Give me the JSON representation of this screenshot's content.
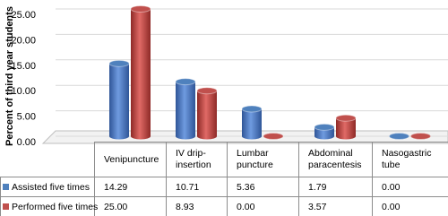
{
  "chart_data": {
    "type": "bar",
    "ylabel": "Percent of third year students",
    "categories": [
      "Venipuncture",
      "IV drip-insertion",
      "Lumbar puncture",
      "Abdominal paracentesis",
      "Nasogastric tube"
    ],
    "series": [
      {
        "name": "Assisted five times",
        "color": "#4f81bd",
        "values": [
          14.29,
          10.71,
          5.36,
          1.79,
          0
        ],
        "value_labels": [
          "14.29",
          "10.71",
          "5.36",
          "1.79",
          "0.00"
        ]
      },
      {
        "name": "Performed five times",
        "color": "#c0504d",
        "values": [
          25,
          8.93,
          0,
          3.57,
          0
        ],
        "value_labels": [
          "25.00",
          "8.93",
          "0.00",
          "3.57",
          "0.00"
        ]
      }
    ],
    "ylim": [
      0,
      25
    ],
    "yticks": [
      {
        "value": 0,
        "label": "0.00"
      },
      {
        "value": 5,
        "label": "5.00"
      },
      {
        "value": 10,
        "label": "10.00"
      },
      {
        "value": 15,
        "label": "15.00"
      },
      {
        "value": 20,
        "label": "20.00"
      },
      {
        "value": 25,
        "label": "25.00"
      }
    ],
    "grid": true
  }
}
